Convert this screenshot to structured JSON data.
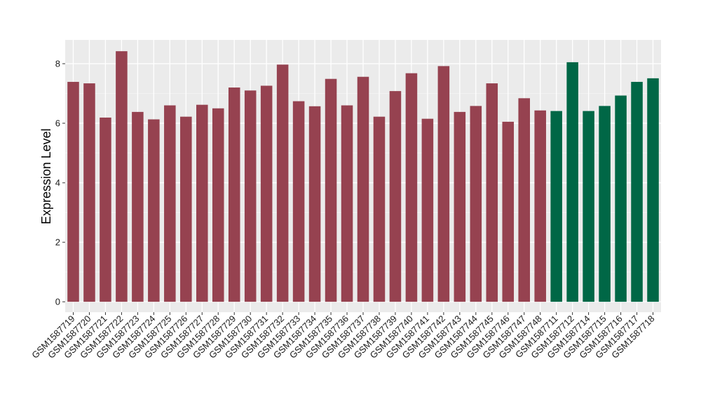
{
  "chart_data": {
    "type": "bar",
    "title": "",
    "xlabel": "",
    "ylabel": "Expression Level",
    "ylim": [
      -0.35,
      8.8
    ],
    "yticks": [
      0,
      2,
      4,
      6,
      8
    ],
    "grid": true,
    "legend": "none",
    "categories": [
      "GSM1587719",
      "GSM1587720",
      "GSM1587721",
      "GSM1587722",
      "GSM1587723",
      "GSM1587724",
      "GSM1587725",
      "GSM1587726",
      "GSM1587727",
      "GSM1587728",
      "GSM1587729",
      "GSM1587730",
      "GSM1587731",
      "GSM1587732",
      "GSM1587733",
      "GSM1587734",
      "GSM1587735",
      "GSM1587736",
      "GSM1587737",
      "GSM1587738",
      "GSM1587739",
      "GSM1587740",
      "GSM1587741",
      "GSM1587742",
      "GSM1587743",
      "GSM1587744",
      "GSM1587745",
      "GSM1587746",
      "GSM1587747",
      "GSM1587748",
      "GSM1587711",
      "GSM1587712",
      "GSM1587714",
      "GSM1587715",
      "GSM1587716",
      "GSM1587717",
      "GSM1587718"
    ],
    "values": [
      7.39,
      7.34,
      6.19,
      8.42,
      6.38,
      6.13,
      6.6,
      6.22,
      6.62,
      6.5,
      7.2,
      7.1,
      7.26,
      7.97,
      6.74,
      6.57,
      7.49,
      6.6,
      7.56,
      6.22,
      7.08,
      7.68,
      6.15,
      7.92,
      6.38,
      6.58,
      7.34,
      6.05,
      6.84,
      6.43,
      6.41,
      8.05,
      6.41,
      6.58,
      6.93,
      7.39,
      7.51
    ],
    "groups": [
      "a",
      "a",
      "a",
      "a",
      "a",
      "a",
      "a",
      "a",
      "a",
      "a",
      "a",
      "a",
      "a",
      "a",
      "a",
      "a",
      "a",
      "a",
      "a",
      "a",
      "a",
      "a",
      "a",
      "a",
      "a",
      "a",
      "a",
      "a",
      "a",
      "a",
      "b",
      "b",
      "b",
      "b",
      "b",
      "b",
      "b"
    ],
    "colors": {
      "a": "#964250",
      "b": "#006746",
      "panel": "#ebebeb",
      "grid_major": "#ffffff",
      "grid_minor": "#f5f5f5"
    }
  }
}
